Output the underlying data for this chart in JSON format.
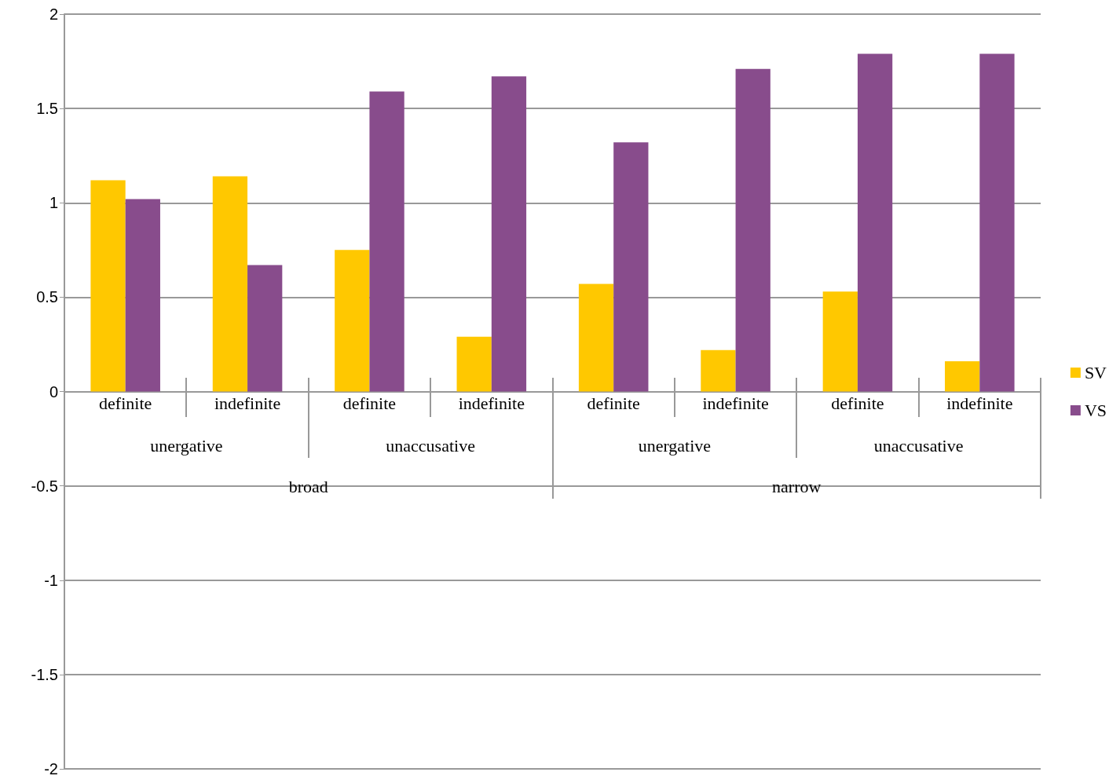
{
  "chart_data": {
    "type": "bar",
    "categories": [
      "definite",
      "indefinite",
      "definite",
      "indefinite",
      "definite",
      "indefinite",
      "definite",
      "indefinite"
    ],
    "series": [
      {
        "name": "SV",
        "color": "#ffc800",
        "values": [
          1.12,
          1.14,
          0.75,
          0.29,
          0.57,
          0.22,
          0.53,
          0.16
        ]
      },
      {
        "name": "VS",
        "color": "#884c8c",
        "values": [
          1.02,
          0.67,
          1.59,
          1.67,
          1.32,
          1.71,
          1.79,
          1.79
        ]
      }
    ],
    "annotations": [
      "unergative",
      "unaccusative",
      "unergative",
      "unaccusative",
      "broad",
      "narrow"
    ],
    "ylim": [
      -2,
      2
    ],
    "yticks": [
      -2,
      -1.5,
      -1,
      -0.5,
      0,
      0.5,
      1,
      1.5,
      2
    ],
    "grid": "y",
    "legend": "right"
  }
}
